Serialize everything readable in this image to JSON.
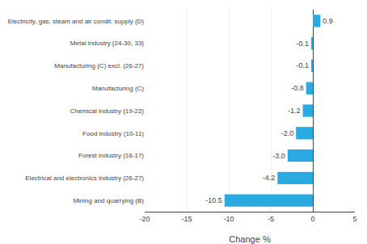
{
  "chart_data": {
    "type": "bar",
    "orientation": "horizontal",
    "categories": [
      "Electricity, gas, steam and air condit. supply (D)",
      "Metal industry (24-30, 33)",
      "Manufacturing (C) excl. (26-27)",
      "Manufacturing (C)",
      "Chemical industry (19-22)",
      "Food industry (10-11)",
      "Forest industry (16-17)",
      "Electrical and electronics industry (26-27)",
      "Mining and quarrying (B)"
    ],
    "values": [
      0.9,
      -0.1,
      -0.1,
      -0.8,
      -1.2,
      -2.0,
      -3.0,
      -4.2,
      -10.5
    ],
    "value_labels": [
      "0.9",
      "-0.1",
      "-0.1",
      "-0.8",
      "-1.2",
      "-2.0",
      "-3.0",
      "-4.2",
      "-10.5"
    ],
    "data_labels": true,
    "color": "#29abe2",
    "xlabel": "Change %",
    "xlim": [
      -20,
      5
    ],
    "xticks": [
      -20,
      -15,
      -10,
      -5,
      0,
      5
    ],
    "grid": true
  }
}
